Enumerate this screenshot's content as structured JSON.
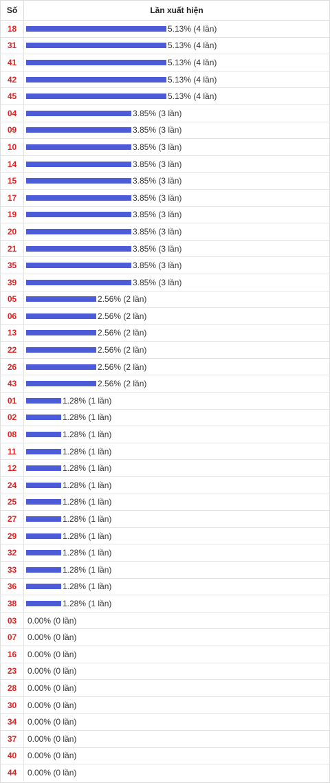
{
  "header": {
    "col_number": "Số",
    "col_frequency": "Lần xuất hiện"
  },
  "colors": {
    "bar": "#4c5cd8",
    "number": "#e02424"
  },
  "chart_data": {
    "type": "bar",
    "orientation": "horizontal",
    "xlim": [
      0,
      5.13
    ],
    "rows": [
      {
        "number": "18",
        "percent": 5.13,
        "label": "5.13% (4 lần)"
      },
      {
        "number": "31",
        "percent": 5.13,
        "label": "5.13% (4 lần)"
      },
      {
        "number": "41",
        "percent": 5.13,
        "label": "5.13% (4 lần)"
      },
      {
        "number": "42",
        "percent": 5.13,
        "label": "5.13% (4 lần)"
      },
      {
        "number": "45",
        "percent": 5.13,
        "label": "5.13% (4 lần)"
      },
      {
        "number": "04",
        "percent": 3.85,
        "label": "3.85% (3 lần)"
      },
      {
        "number": "09",
        "percent": 3.85,
        "label": "3.85% (3 lần)"
      },
      {
        "number": "10",
        "percent": 3.85,
        "label": "3.85% (3 lần)"
      },
      {
        "number": "14",
        "percent": 3.85,
        "label": "3.85% (3 lần)"
      },
      {
        "number": "15",
        "percent": 3.85,
        "label": "3.85% (3 lần)"
      },
      {
        "number": "17",
        "percent": 3.85,
        "label": "3.85% (3 lần)"
      },
      {
        "number": "19",
        "percent": 3.85,
        "label": "3.85% (3 lần)"
      },
      {
        "number": "20",
        "percent": 3.85,
        "label": "3.85% (3 lần)"
      },
      {
        "number": "21",
        "percent": 3.85,
        "label": "3.85% (3 lần)"
      },
      {
        "number": "35",
        "percent": 3.85,
        "label": "3.85% (3 lần)"
      },
      {
        "number": "39",
        "percent": 3.85,
        "label": "3.85% (3 lần)"
      },
      {
        "number": "05",
        "percent": 2.56,
        "label": "2.56% (2 lần)"
      },
      {
        "number": "06",
        "percent": 2.56,
        "label": "2.56% (2 lần)"
      },
      {
        "number": "13",
        "percent": 2.56,
        "label": "2.56% (2 lần)"
      },
      {
        "number": "22",
        "percent": 2.56,
        "label": "2.56% (2 lần)"
      },
      {
        "number": "26",
        "percent": 2.56,
        "label": "2.56% (2 lần)"
      },
      {
        "number": "43",
        "percent": 2.56,
        "label": "2.56% (2 lần)"
      },
      {
        "number": "01",
        "percent": 1.28,
        "label": "1.28% (1 lần)"
      },
      {
        "number": "02",
        "percent": 1.28,
        "label": "1.28% (1 lần)"
      },
      {
        "number": "08",
        "percent": 1.28,
        "label": "1.28% (1 lần)"
      },
      {
        "number": "11",
        "percent": 1.28,
        "label": "1.28% (1 lần)"
      },
      {
        "number": "12",
        "percent": 1.28,
        "label": "1.28% (1 lần)"
      },
      {
        "number": "24",
        "percent": 1.28,
        "label": "1.28% (1 lần)"
      },
      {
        "number": "25",
        "percent": 1.28,
        "label": "1.28% (1 lần)"
      },
      {
        "number": "27",
        "percent": 1.28,
        "label": "1.28% (1 lần)"
      },
      {
        "number": "29",
        "percent": 1.28,
        "label": "1.28% (1 lần)"
      },
      {
        "number": "32",
        "percent": 1.28,
        "label": "1.28% (1 lần)"
      },
      {
        "number": "33",
        "percent": 1.28,
        "label": "1.28% (1 lần)"
      },
      {
        "number": "36",
        "percent": 1.28,
        "label": "1.28% (1 lần)"
      },
      {
        "number": "38",
        "percent": 1.28,
        "label": "1.28% (1 lần)"
      },
      {
        "number": "03",
        "percent": 0,
        "label": "0.00% (0 lần)"
      },
      {
        "number": "07",
        "percent": 0,
        "label": "0.00% (0 lần)"
      },
      {
        "number": "16",
        "percent": 0,
        "label": "0.00% (0 lần)"
      },
      {
        "number": "23",
        "percent": 0,
        "label": "0.00% (0 lần)"
      },
      {
        "number": "28",
        "percent": 0,
        "label": "0.00% (0 lần)"
      },
      {
        "number": "30",
        "percent": 0,
        "label": "0.00% (0 lần)"
      },
      {
        "number": "34",
        "percent": 0,
        "label": "0.00% (0 lần)"
      },
      {
        "number": "37",
        "percent": 0,
        "label": "0.00% (0 lần)"
      },
      {
        "number": "40",
        "percent": 0,
        "label": "0.00% (0 lần)"
      },
      {
        "number": "44",
        "percent": 0,
        "label": "0.00% (0 lần)"
      }
    ]
  }
}
